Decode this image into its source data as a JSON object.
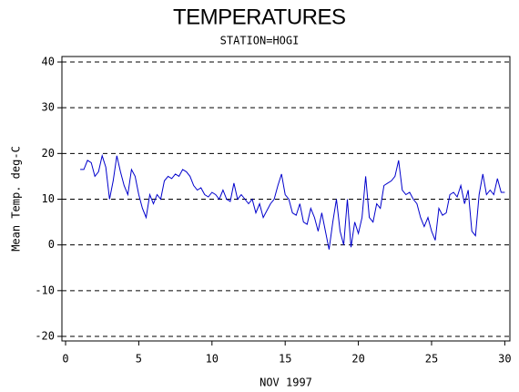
{
  "chart_data": {
    "type": "line",
    "title": "TEMPERATURES",
    "subtitle": "STATION=HOGI",
    "x_label": "NOV 1997",
    "y_label": "Mean Temp. deg-C",
    "xlim": [
      -0.25,
      30.35
    ],
    "ylim": [
      -21,
      41.2
    ],
    "xticks": [
      0,
      5,
      10,
      15,
      20,
      25,
      30
    ],
    "yticks": [
      -20,
      -10,
      0,
      10,
      20,
      30,
      40
    ],
    "grid": true,
    "series": [
      {
        "name": "Mean Temp",
        "color": "#0000cc",
        "x": [
          1.0,
          1.25,
          1.5,
          1.75,
          2.0,
          2.25,
          2.5,
          2.75,
          3.0,
          3.25,
          3.5,
          3.75,
          4.0,
          4.25,
          4.5,
          4.75,
          5.0,
          5.25,
          5.5,
          5.75,
          6.0,
          6.25,
          6.5,
          6.75,
          7.0,
          7.25,
          7.5,
          7.75,
          8.0,
          8.25,
          8.5,
          8.75,
          9.0,
          9.25,
          9.5,
          9.75,
          10.0,
          10.25,
          10.5,
          10.75,
          11.0,
          11.25,
          11.5,
          11.75,
          12.0,
          12.25,
          12.5,
          12.75,
          13.0,
          13.25,
          13.5,
          13.75,
          14.0,
          14.25,
          14.5,
          14.75,
          15.0,
          15.25,
          15.5,
          15.75,
          16.0,
          16.25,
          16.5,
          16.75,
          17.0,
          17.25,
          17.5,
          17.75,
          18.0,
          18.25,
          18.5,
          18.75,
          19.0,
          19.25,
          19.5,
          19.75,
          20.0,
          20.25,
          20.5,
          20.75,
          21.0,
          21.25,
          21.5,
          21.75,
          22.0,
          22.25,
          22.5,
          22.75,
          23.0,
          23.25,
          23.5,
          23.75,
          24.0,
          24.25,
          24.5,
          24.75,
          25.0,
          25.25,
          25.5,
          25.75,
          26.0,
          26.25,
          26.5,
          26.75,
          27.0,
          27.25,
          27.5,
          27.75,
          28.0,
          28.25,
          28.5,
          28.75,
          29.0,
          29.25,
          29.5,
          29.75,
          30.0
        ],
        "values": [
          16.5,
          16.5,
          18.5,
          18,
          15,
          16,
          19.5,
          17,
          10,
          14,
          19.5,
          16,
          13,
          11,
          16.5,
          15,
          11,
          8,
          6,
          11,
          9,
          11,
          10,
          14,
          15,
          14.5,
          15.5,
          15,
          16.5,
          16,
          15,
          13,
          12,
          12.5,
          11,
          10.5,
          11.5,
          11,
          10,
          12,
          10,
          9.5,
          13.5,
          10,
          11,
          10,
          9,
          10,
          7,
          9,
          6,
          7.5,
          9,
          10,
          13,
          15.5,
          11,
          10,
          7,
          6.5,
          9,
          5,
          4.5,
          8,
          6,
          3,
          7,
          3,
          -1,
          5,
          10,
          3,
          0,
          10,
          -0.5,
          5,
          2.5,
          6,
          15,
          6,
          5,
          9,
          8,
          13,
          13.5,
          14,
          15,
          18.5,
          12,
          11,
          11.5,
          10,
          9,
          6,
          4,
          6,
          3,
          1,
          8,
          6.5,
          7,
          11,
          11.5,
          10.5,
          13,
          9,
          12,
          3,
          2,
          11,
          15.5,
          11,
          12,
          11,
          14.5,
          11.5,
          11.5
        ]
      }
    ]
  }
}
